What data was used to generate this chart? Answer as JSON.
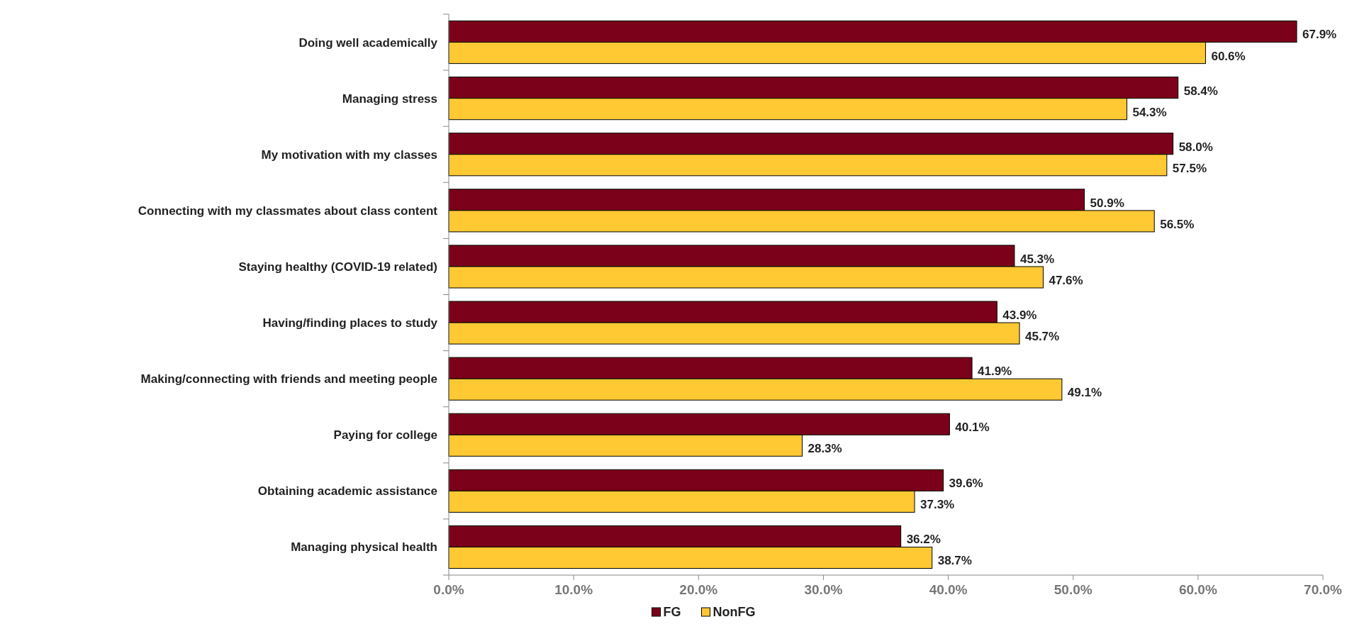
{
  "chart_data": {
    "type": "bar",
    "orientation": "horizontal",
    "categories": [
      "Doing well academically",
      "Managing stress",
      "My motivation with my classes",
      "Connecting with my classmates about class content",
      "Staying healthy (COVID-19 related)",
      "Having/finding places to study",
      "Making/connecting with  friends and meeting people",
      "Paying for college",
      "Obtaining academic assistance",
      "Managing physical health"
    ],
    "series": [
      {
        "name": "FG",
        "color": "#7b0019",
        "values": [
          67.9,
          58.4,
          58.0,
          50.9,
          45.3,
          43.9,
          41.9,
          40.1,
          39.6,
          36.2
        ],
        "value_labels": [
          "67.9%",
          "58.4%",
          "58.0%",
          "50.9%",
          "45.3%",
          "43.9%",
          "41.9%",
          "40.1%",
          "39.6%",
          "36.2%"
        ]
      },
      {
        "name": "NonFG",
        "color": "#ffc933",
        "values": [
          60.6,
          54.3,
          57.5,
          56.5,
          47.6,
          45.7,
          49.1,
          28.3,
          37.3,
          38.7
        ],
        "value_labels": [
          "60.6%",
          "54.3%",
          "57.5%",
          "56.5%",
          "47.6%",
          "45.7%",
          "49.1%",
          "28.3%",
          "37.3%",
          "38.7%"
        ]
      }
    ],
    "xlim": [
      0,
      70
    ],
    "xticks": [
      {
        "value": 0,
        "label": "0.0%"
      },
      {
        "value": 10,
        "label": "10.0%"
      },
      {
        "value": 20,
        "label": "20.0%"
      },
      {
        "value": 30,
        "label": "30.0%"
      },
      {
        "value": 40,
        "label": "40.0%"
      },
      {
        "value": 50,
        "label": "50.0%"
      },
      {
        "value": 60,
        "label": "60.0%"
      },
      {
        "value": 70,
        "label": "70.0%"
      }
    ],
    "legend": "bottom"
  }
}
